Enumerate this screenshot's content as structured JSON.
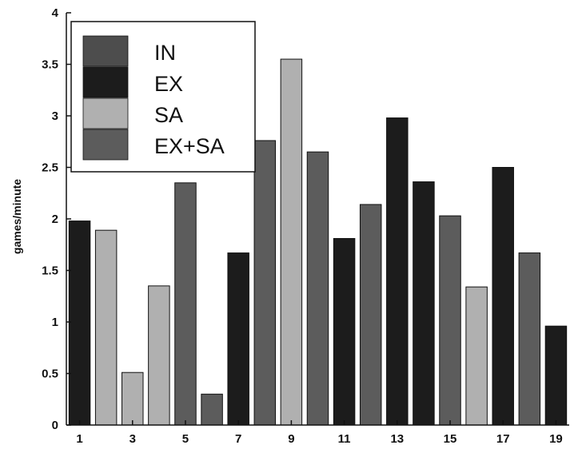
{
  "chart_data": {
    "type": "bar",
    "ylabel": "games/minute",
    "xlabel": "",
    "ylim": [
      0,
      4
    ],
    "yticks": [
      0,
      0.5,
      1,
      1.5,
      2,
      2.5,
      3,
      3.5,
      4
    ],
    "xticks": [
      1,
      3,
      5,
      7,
      9,
      11,
      13,
      15,
      17,
      19
    ],
    "categories": [
      1,
      2,
      3,
      4,
      5,
      6,
      7,
      8,
      9,
      10,
      11,
      12,
      13,
      14,
      15,
      16,
      17,
      18,
      19
    ],
    "values": [
      1.98,
      1.89,
      0.51,
      1.35,
      2.35,
      0.3,
      1.67,
      2.76,
      3.55,
      2.65,
      1.81,
      2.14,
      2.98,
      2.36,
      2.03,
      1.34,
      2.5,
      1.67,
      0.96
    ],
    "groups": [
      "EX",
      "SA",
      "SA",
      "SA",
      "EX+SA",
      "EX+SA",
      "EX",
      "EX+SA",
      "SA",
      "EX+SA",
      "EX",
      "EX+SA",
      "EX",
      "EX",
      "EX+SA",
      "SA",
      "EX",
      "EX+SA",
      "EX"
    ],
    "legend": [
      {
        "name": "IN",
        "color": "#4d4d4d"
      },
      {
        "name": "EX",
        "color": "#1c1c1c"
      },
      {
        "name": "SA",
        "color": "#b0b0b0"
      },
      {
        "name": "EX+SA",
        "color": "#5c5c5c"
      }
    ],
    "legend_position": "top-left",
    "grid": false
  }
}
